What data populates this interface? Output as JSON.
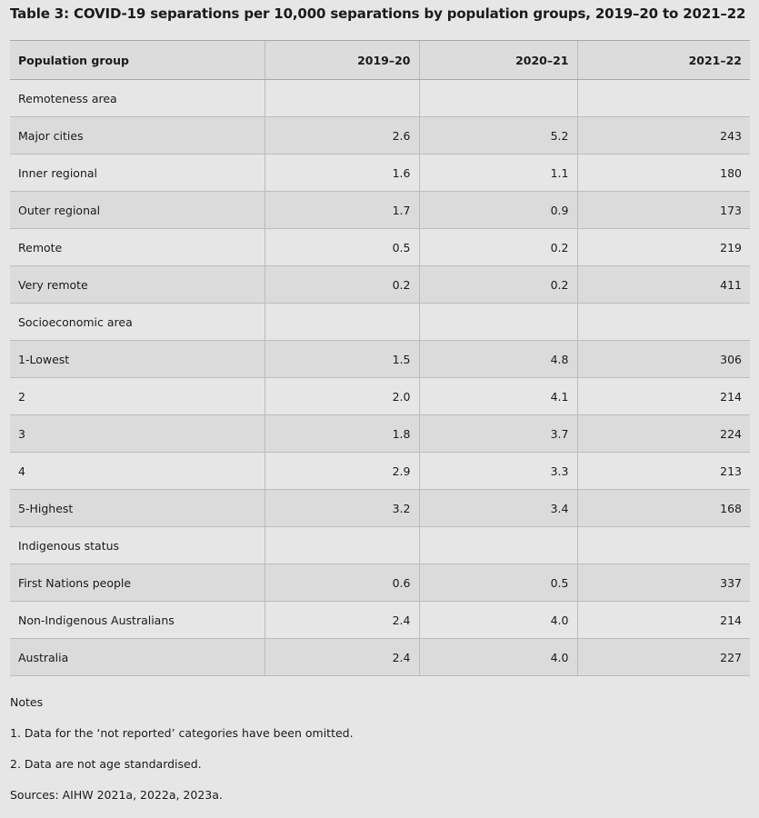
{
  "caption": "Table 3: COVID-19 separations per 10,000 separations by population groups, 2019–20 to 2021–22",
  "table": {
    "headers": [
      "Population group",
      "2019–20",
      "2020–21",
      "2021–22"
    ],
    "rows": [
      [
        "Remoteness area",
        "",
        "",
        ""
      ],
      [
        "Major cities",
        "2.6",
        "5.2",
        "243"
      ],
      [
        "Inner regional",
        "1.6",
        "1.1",
        "180"
      ],
      [
        "Outer regional",
        "1.7",
        "0.9",
        "173"
      ],
      [
        "Remote",
        "0.5",
        "0.2",
        "219"
      ],
      [
        "Very remote",
        "0.2",
        "0.2",
        "411"
      ],
      [
        "Socioeconomic area",
        "",
        "",
        ""
      ],
      [
        "1-Lowest",
        "1.5",
        "4.8",
        "306"
      ],
      [
        "2",
        "2.0",
        "4.1",
        "214"
      ],
      [
        "3",
        "1.8",
        "3.7",
        "224"
      ],
      [
        "4",
        "2.9",
        "3.3",
        "213"
      ],
      [
        "5-Highest",
        "3.2",
        "3.4",
        "168"
      ],
      [
        "Indigenous status",
        "",
        "",
        ""
      ],
      [
        "First Nations people",
        "0.6",
        "0.5",
        "337"
      ],
      [
        "Non-Indigenous Australians",
        "2.4",
        "4.0",
        "214"
      ],
      [
        "Australia",
        "2.4",
        "4.0",
        "227"
      ]
    ]
  },
  "notes": {
    "heading": "Notes",
    "items": [
      "1. Data for the ‘not reported’ categories have been omitted.",
      "2. Data are not age standardised."
    ],
    "sources": "Sources: AIHW 2021a, 2022a, 2023a."
  }
}
